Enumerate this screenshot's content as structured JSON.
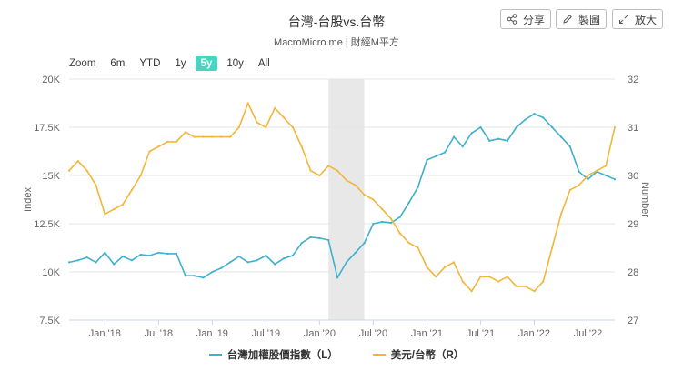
{
  "header": {
    "title": "台灣-台股vs.台幣",
    "subtitle": "MacroMicro.me | 財經M平方",
    "share_label": "分享",
    "draw_label": "製圖",
    "enlarge_label": "放大"
  },
  "zoom": {
    "label": "Zoom",
    "options": [
      "6m",
      "YTD",
      "1y",
      "5y",
      "10y",
      "All"
    ],
    "selected": "5y"
  },
  "colors": {
    "taiex": "#3fb0cd",
    "usdtwd": "#f2b63c",
    "recession_band": "#e8e8e8",
    "grid": "#e6e6e6",
    "zoom_active": "#44d6c0"
  },
  "chart_data": {
    "type": "line",
    "title": "台灣-台股vs.台幣",
    "subtitle": "MacroMicro.me | 財經M平方",
    "x_range": [
      "2017-09",
      "2022-10"
    ],
    "x_tick_labels": [
      "Jan '18",
      "Jul '18",
      "Jan '19",
      "Jul '19",
      "Jan '20",
      "Jul '20",
      "Jan '21",
      "Jul '21",
      "Jan '22",
      "Jul '22"
    ],
    "y_left": {
      "label": "Index",
      "range": [
        7500,
        20000
      ],
      "tick_labels": [
        "7.5K",
        "10K",
        "12.5K",
        "15K",
        "17.5K",
        "20K"
      ]
    },
    "y_right": {
      "label": "Number",
      "range": [
        27,
        32
      ],
      "tick_labels": [
        "27",
        "28",
        "29",
        "30",
        "31",
        "32"
      ]
    },
    "shaded_region": [
      "2020-02",
      "2020-06"
    ],
    "grid": true,
    "legend_position": "bottom",
    "series": [
      {
        "name": "台灣加權股價指數（L）",
        "axis": "left",
        "dates": [
          "2017-09",
          "2017-10",
          "2017-11",
          "2017-12",
          "2018-01",
          "2018-02",
          "2018-03",
          "2018-04",
          "2018-05",
          "2018-06",
          "2018-07",
          "2018-08",
          "2018-09",
          "2018-10",
          "2018-11",
          "2018-12",
          "2019-01",
          "2019-02",
          "2019-03",
          "2019-04",
          "2019-05",
          "2019-06",
          "2019-07",
          "2019-08",
          "2019-09",
          "2019-10",
          "2019-11",
          "2019-12",
          "2020-01",
          "2020-02",
          "2020-03",
          "2020-04",
          "2020-05",
          "2020-06",
          "2020-07",
          "2020-08",
          "2020-09",
          "2020-10",
          "2020-11",
          "2020-12",
          "2021-01",
          "2021-02",
          "2021-03",
          "2021-04",
          "2021-05",
          "2021-06",
          "2021-07",
          "2021-08",
          "2021-09",
          "2021-10",
          "2021-11",
          "2021-12",
          "2022-01",
          "2022-02",
          "2022-03",
          "2022-04",
          "2022-05",
          "2022-06",
          "2022-07",
          "2022-08",
          "2022-09",
          "2022-10"
        ],
        "values": [
          10500,
          10600,
          10750,
          10500,
          11000,
          10400,
          10800,
          10600,
          10900,
          10850,
          11000,
          10950,
          10950,
          9800,
          9800,
          9700,
          10000,
          10200,
          10500,
          10800,
          10500,
          10600,
          10850,
          10400,
          10700,
          10850,
          11500,
          11800,
          11750,
          11650,
          9700,
          10500,
          11000,
          11500,
          12500,
          12600,
          12550,
          12850,
          13600,
          14400,
          15800,
          16000,
          16200,
          17000,
          16500,
          17200,
          17500,
          16800,
          16900,
          16800,
          17500,
          17900,
          18200,
          18000,
          17500,
          17000,
          16500,
          15200,
          14800,
          15200,
          15000,
          14800
        ]
      },
      {
        "name": "美元/台幣（R）",
        "axis": "right",
        "dates": [
          "2017-09",
          "2017-10",
          "2017-11",
          "2017-12",
          "2018-01",
          "2018-02",
          "2018-03",
          "2018-04",
          "2018-05",
          "2018-06",
          "2018-07",
          "2018-08",
          "2018-09",
          "2018-10",
          "2018-11",
          "2018-12",
          "2019-01",
          "2019-02",
          "2019-03",
          "2019-04",
          "2019-05",
          "2019-06",
          "2019-07",
          "2019-08",
          "2019-09",
          "2019-10",
          "2019-11",
          "2019-12",
          "2020-01",
          "2020-02",
          "2020-03",
          "2020-04",
          "2020-05",
          "2020-06",
          "2020-07",
          "2020-08",
          "2020-09",
          "2020-10",
          "2020-11",
          "2020-12",
          "2021-01",
          "2021-02",
          "2021-03",
          "2021-04",
          "2021-05",
          "2021-06",
          "2021-07",
          "2021-08",
          "2021-09",
          "2021-10",
          "2021-11",
          "2021-12",
          "2022-01",
          "2022-02",
          "2022-03",
          "2022-04",
          "2022-05",
          "2022-06",
          "2022-07",
          "2022-08",
          "2022-09",
          "2022-10"
        ],
        "values": [
          30.1,
          30.3,
          30.1,
          29.8,
          29.2,
          29.3,
          29.4,
          29.7,
          30.0,
          30.5,
          30.6,
          30.7,
          30.7,
          30.9,
          30.8,
          30.8,
          30.8,
          30.8,
          30.8,
          31.0,
          31.5,
          31.1,
          31.0,
          31.4,
          31.2,
          31.0,
          30.6,
          30.1,
          30.0,
          30.2,
          30.1,
          29.9,
          29.8,
          29.6,
          29.5,
          29.3,
          29.1,
          28.8,
          28.6,
          28.5,
          28.1,
          27.9,
          28.1,
          28.2,
          27.8,
          27.6,
          27.9,
          27.9,
          27.8,
          27.9,
          27.7,
          27.7,
          27.6,
          27.8,
          28.5,
          29.2,
          29.7,
          29.8,
          30.0,
          30.1,
          30.2,
          31.0
        ]
      }
    ]
  }
}
